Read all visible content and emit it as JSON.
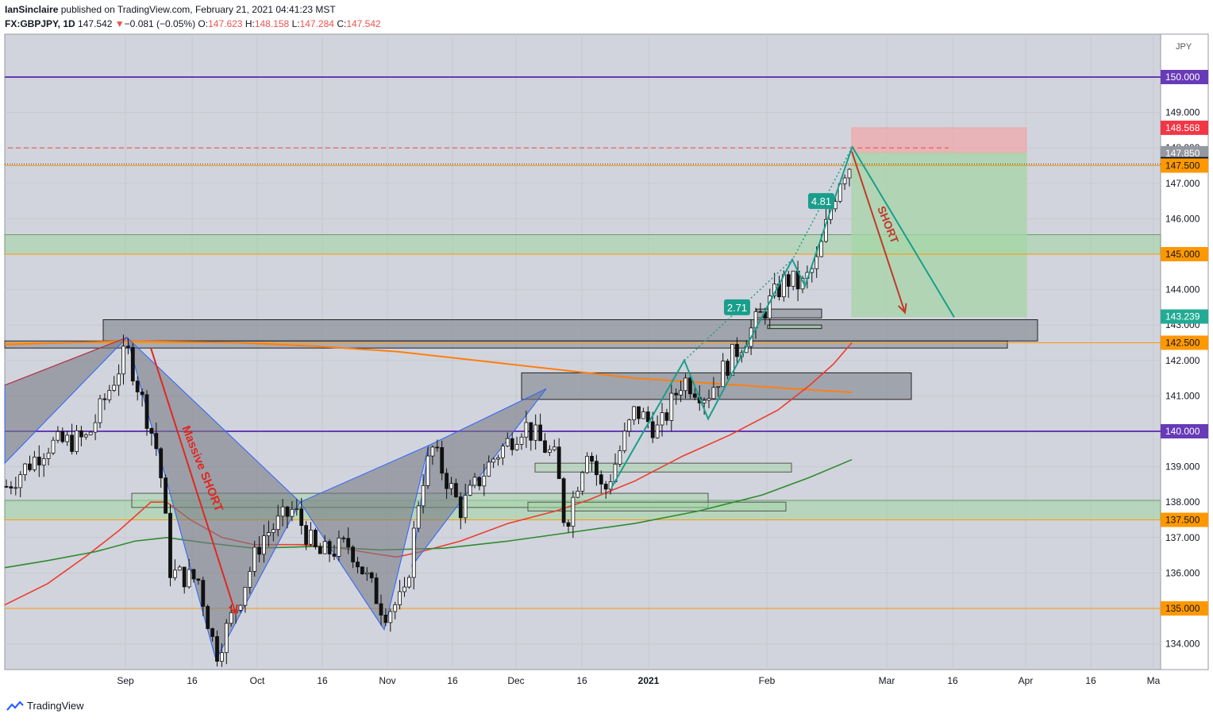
{
  "header": {
    "author": "IanSinclaire",
    "published_text": "published on TradingView.com, February 21, 2021 04:41:23 MST",
    "symbol": "FX:GBPJPY, 1D",
    "last": "147.542",
    "change": "−0.081 (−0.05%)",
    "o_label": "O:",
    "o_val": "147.623",
    "h_label": "H:",
    "h_val": "148.158",
    "l_label": "L:",
    "l_val": "147.284",
    "c_label": "C:",
    "c_val": "147.542"
  },
  "footer": {
    "brand": "TradingView"
  },
  "colors": {
    "plot_bg": "#d1d4dc",
    "purple": "#673ab7",
    "orange_line": "#ff9800",
    "ma_red": "#ef3b2c",
    "ma_green": "#2e8b2e",
    "ma_orange": "#ff7f0e",
    "teal": "#1a9e8c",
    "short_arrow_red": "#e0281f",
    "short_arrow_brown": "#c0392b",
    "bull_candle": "#ffffff",
    "bear_candle": "#111111"
  },
  "chart_data": {
    "type": "candlestick",
    "currency_label": "JPY",
    "y_ticks": [
      "150.000",
      "149.000",
      "148.000",
      "147.000",
      "146.000",
      "145.000",
      "144.000",
      "143.000",
      "142.000",
      "141.000",
      "140.000",
      "139.000",
      "138.000",
      "137.000",
      "136.000",
      "135.000",
      "134.000"
    ],
    "x_ticks": [
      "Sep",
      "16",
      "Oct",
      "16",
      "Nov",
      "16",
      "Dec",
      "16",
      "2021",
      "Feb",
      "Mar",
      "16",
      "Apr",
      "16",
      "Ma"
    ],
    "price_labels": [
      {
        "text": "150.000",
        "kind": "purple"
      },
      {
        "text": "148.568",
        "kind": "red"
      },
      {
        "text": "147.850",
        "kind": "gray"
      },
      {
        "text": "147.542",
        "kind": "black"
      },
      {
        "text": "147.500",
        "kind": "orange"
      },
      {
        "text": "145.000",
        "kind": "orange"
      },
      {
        "text": "143.239",
        "kind": "green"
      },
      {
        "text": "142.500",
        "kind": "orange"
      },
      {
        "text": "140.000",
        "kind": "purple"
      },
      {
        "text": "137.500",
        "kind": "orange"
      },
      {
        "text": "135.000",
        "kind": "orange"
      }
    ],
    "horizontal_levels": [
      150.0,
      147.5,
      145.0,
      142.5,
      140.0,
      137.5,
      135.0
    ],
    "position_tool": {
      "entry": 147.85,
      "stop": 148.568,
      "target": 143.239
    },
    "annotations": [
      {
        "text": "Massive SHORT"
      },
      {
        "text": "SHORT"
      },
      {
        "text": "4.81"
      },
      {
        "text": "2.71"
      }
    ]
  }
}
